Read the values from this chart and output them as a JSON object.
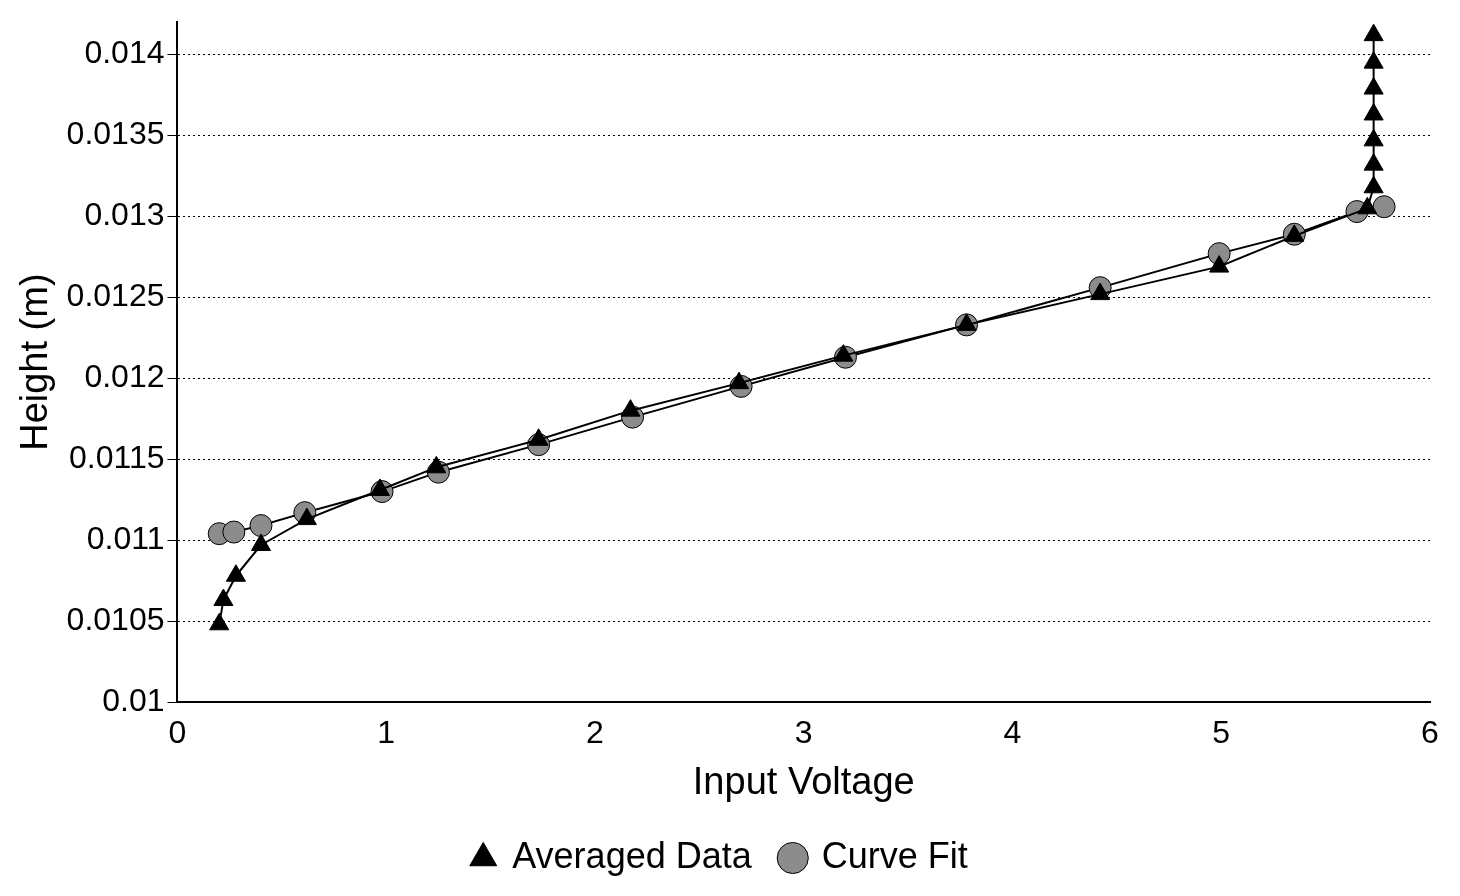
{
  "chart_data": {
    "type": "line",
    "xlabel": "Input Voltage",
    "ylabel": "Height (m)",
    "xlim": [
      0,
      6
    ],
    "xticks": [
      0,
      1,
      2,
      3,
      4,
      5,
      6
    ],
    "ylim": [
      0.01,
      0.0142
    ],
    "yticks": [
      0.01,
      0.0105,
      0.011,
      0.0115,
      0.012,
      0.0125,
      0.013,
      0.0135,
      0.014
    ],
    "grid": "y",
    "legend": "bottom",
    "line_style": "solid",
    "series": [
      {
        "name": "Averaged Data",
        "color": "#000000",
        "marker": "triangle",
        "x": [
          0.2,
          0.22,
          0.28,
          0.4,
          0.62,
          0.97,
          1.24,
          1.73,
          2.17,
          2.69,
          3.19,
          3.78,
          4.42,
          4.99,
          5.35,
          5.7,
          5.73,
          5.73,
          5.73,
          5.73,
          5.73,
          5.73,
          5.73
        ],
        "values": [
          0.01048,
          0.01063,
          0.01078,
          0.01097,
          0.01113,
          0.01131,
          0.01145,
          0.01162,
          0.0118,
          0.01197,
          0.01214,
          0.01233,
          0.01252,
          0.01269,
          0.01288,
          0.01305,
          0.01318,
          0.01332,
          0.01347,
          0.01363,
          0.01379,
          0.01395,
          0.01412
        ]
      },
      {
        "name": "Curve Fit",
        "color": "#8c8c8c",
        "marker": "circle",
        "x": [
          0.2,
          0.27,
          0.4,
          0.61,
          0.98,
          1.25,
          1.73,
          2.18,
          2.7,
          3.2,
          3.78,
          4.42,
          4.99,
          5.35,
          5.65,
          5.72,
          5.78
        ],
        "values": [
          0.01104,
          0.01105,
          0.01109,
          0.01117,
          0.0113,
          0.01142,
          0.01159,
          0.01176,
          0.01195,
          0.01213,
          0.01233,
          0.01256,
          0.01277,
          0.01289,
          0.01303,
          null,
          0.01306
        ]
      }
    ]
  }
}
